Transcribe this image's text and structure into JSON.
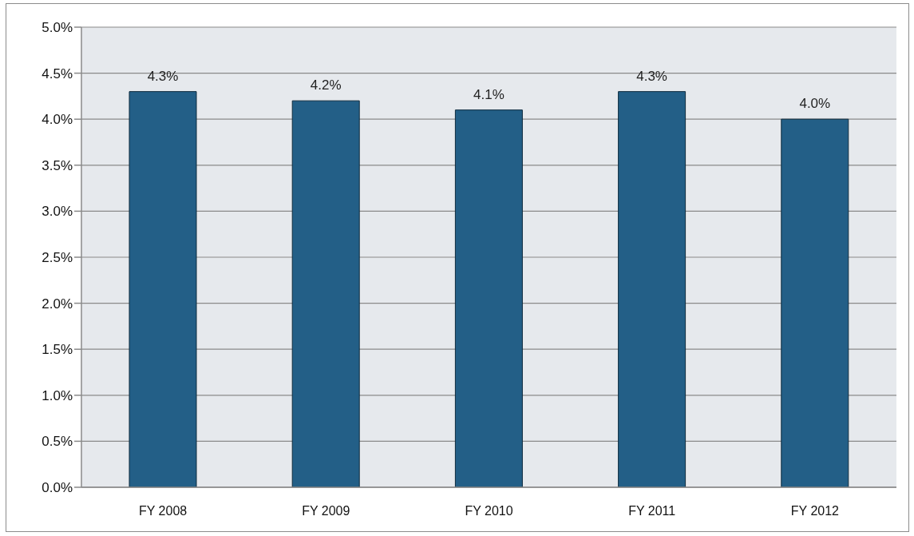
{
  "chart_data": {
    "type": "bar",
    "categories": [
      "FY 2008",
      "FY 2009",
      "FY 2010",
      "FY 2011",
      "FY 2012"
    ],
    "values": [
      4.3,
      4.2,
      4.1,
      4.3,
      4.0
    ],
    "value_labels": [
      "4.3%",
      "4.2%",
      "4.1%",
      "4.3%",
      "4.0%"
    ],
    "color": "#235f87",
    "ylim": [
      0,
      5
    ],
    "yticks": [
      {
        "value": 0,
        "label": "0.0%"
      },
      {
        "value": 0.5,
        "label": "0.5%"
      },
      {
        "value": 1,
        "label": "1.0%"
      },
      {
        "value": 1.5,
        "label": "1.5%"
      },
      {
        "value": 2,
        "label": "2.0%"
      },
      {
        "value": 2.5,
        "label": "2.5%"
      },
      {
        "value": 3,
        "label": "3.0%"
      },
      {
        "value": 3.5,
        "label": "3.5%"
      },
      {
        "value": 4,
        "label": "4.0%"
      },
      {
        "value": 4.5,
        "label": "4.5%"
      },
      {
        "value": 5,
        "label": "5.0%"
      }
    ],
    "grid": "y"
  }
}
